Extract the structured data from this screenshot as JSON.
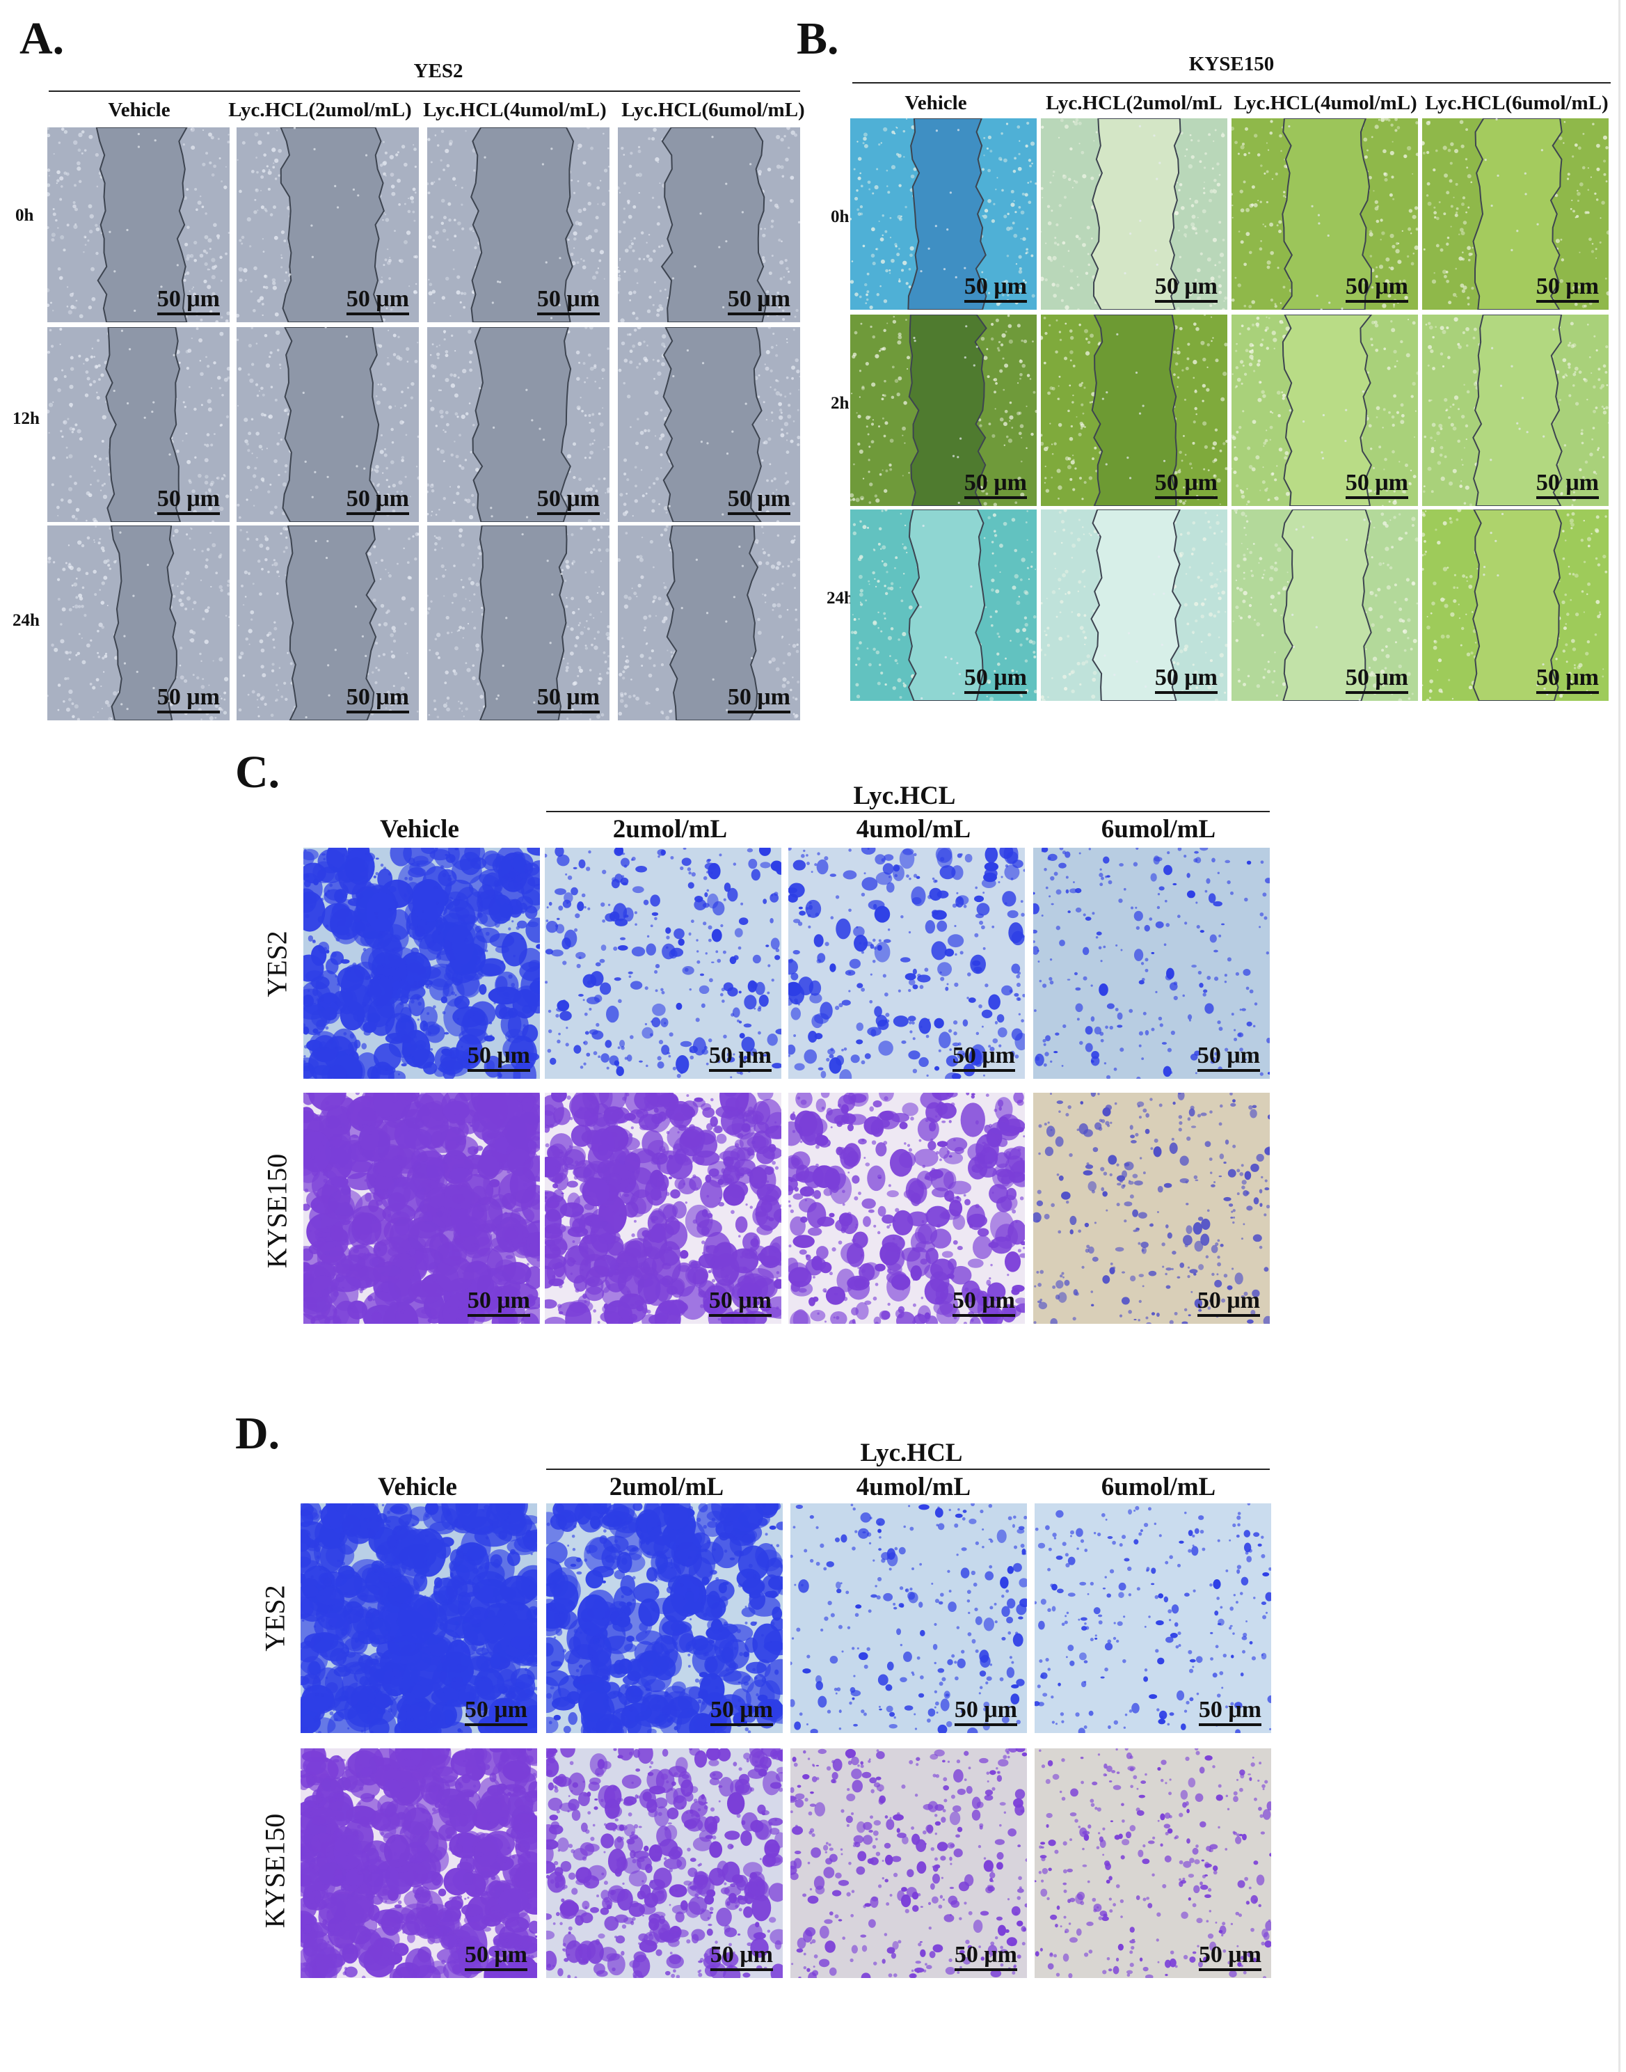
{
  "panel_a": {
    "letter": "A.",
    "cell_line": "YES2",
    "columns": [
      "Vehicle",
      "Lyc.HCL(2umol/mL)",
      "Lyc.HCL(4umol/mL)",
      "Lyc.HCL(6umol/mL)"
    ],
    "rows": [
      "0h",
      "12h",
      "24h"
    ]
  },
  "panel_b": {
    "letter": "B.",
    "cell_line": "KYSE150",
    "columns": [
      "Vehicle",
      "Lyc.HCL(2umol/mL",
      "Lyc.HCL(4umol/mL)",
      "Lyc.HCL(6umol/mL)"
    ],
    "rows": [
      "0h",
      "2h",
      "24h"
    ]
  },
  "panel_c": {
    "letter": "C.",
    "vehicle": "Vehicle",
    "treatment": "Lyc.HCL",
    "doses": [
      "2umol/mL",
      "4umol/mL",
      "6umol/mL"
    ],
    "rows": [
      "YES2",
      "KYSE150"
    ]
  },
  "panel_d": {
    "letter": "D.",
    "vehicle": "Vehicle",
    "treatment": "Lyc.HCL",
    "doses": [
      "2umol/mL",
      "4umol/mL",
      "6umol/mL"
    ],
    "rows": [
      "YES2",
      "KYSE150"
    ]
  },
  "scale_bar_label": "50 μm",
  "colors": {
    "wound_gray_bg": "#a9b1c2",
    "wound_gray_gap": "#8e97a8",
    "kyse_cyan": "#4fb0d6",
    "kyse_green": "#8fb84a",
    "kyse_teal": "#62c2c0",
    "stain_blue": "#2d3ee6",
    "stain_purple": "#7b3fd8",
    "field_light_blue": "#b9cfe6",
    "field_beige": "#d9cfb8"
  }
}
